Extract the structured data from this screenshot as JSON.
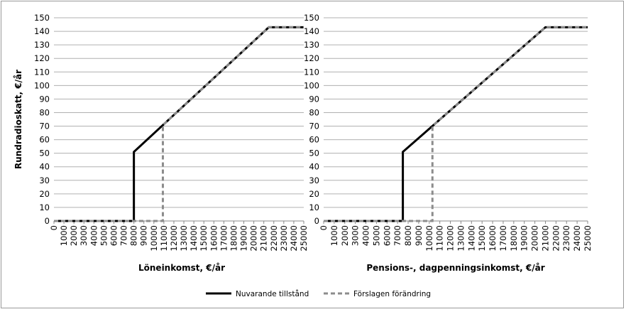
{
  "chart_data": [
    {
      "type": "line",
      "ylabel": "Rundradioskatt, €/år",
      "xlabel": "Löneinkomst, €/år",
      "xlim": [
        0,
        25000
      ],
      "xticks": [
        0,
        1000,
        2000,
        3000,
        4000,
        5000,
        6000,
        7000,
        8000,
        9000,
        10000,
        11000,
        12000,
        13000,
        14000,
        15000,
        16000,
        17000,
        18000,
        19000,
        20000,
        21000,
        22000,
        23000,
        24000,
        25000
      ],
      "ylim": [
        0,
        150
      ],
      "yticks": [
        0,
        10,
        20,
        30,
        40,
        50,
        60,
        70,
        80,
        90,
        100,
        110,
        120,
        130,
        140,
        150
      ],
      "grid": true,
      "series": [
        {
          "name": "Nuvarande tillstånd",
          "color": "#000000",
          "dash": false,
          "x": [
            0,
            8000,
            8000,
            21500,
            25000
          ],
          "values": [
            0,
            0,
            51,
            143,
            143
          ]
        },
        {
          "name": "Förslagen förändring",
          "color": "#8c8c8c",
          "dash": true,
          "x": [
            0,
            10900,
            10900,
            21500,
            25000
          ],
          "values": [
            0,
            0,
            70.8,
            143,
            143
          ]
        }
      ]
    },
    {
      "type": "line",
      "xlabel": "Pensions-, dagpenningsinkomst, €/år",
      "xlim": [
        0,
        25000
      ],
      "xticks": [
        0,
        1000,
        2000,
        3000,
        4000,
        5000,
        6000,
        7000,
        8000,
        9000,
        10000,
        11000,
        12000,
        13000,
        14000,
        15000,
        16000,
        17000,
        18000,
        19000,
        20000,
        21000,
        22000,
        23000,
        24000,
        25000
      ],
      "ylim": [
        0,
        150
      ],
      "yticks": [
        0,
        10,
        20,
        30,
        40,
        50,
        60,
        70,
        80,
        90,
        100,
        110,
        120,
        130,
        140,
        150
      ],
      "grid": true,
      "series": [
        {
          "name": "Nuvarande tillstånd",
          "color": "#000000",
          "dash": false,
          "x": [
            0,
            7500,
            7500,
            21000,
            25000
          ],
          "values": [
            0,
            0,
            51,
            143,
            143
          ]
        },
        {
          "name": "Förslagen förändring",
          "color": "#8c8c8c",
          "dash": true,
          "x": [
            0,
            10300,
            10300,
            21000,
            25000
          ],
          "values": [
            0,
            0,
            70.1,
            143,
            143
          ]
        }
      ]
    }
  ]
}
